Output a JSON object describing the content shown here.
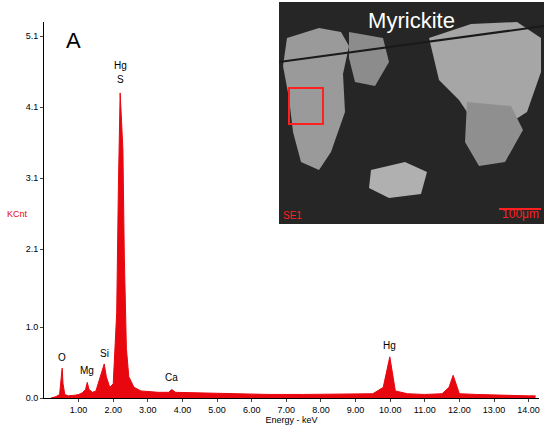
{
  "chart_data": {
    "type": "area",
    "panel_label": "A",
    "x_label": "Energy - keV",
    "y_label": "KCnt",
    "color": "#e8070f",
    "grid": false,
    "x": [
      0.2,
      0.35,
      0.45,
      0.5,
      0.525,
      0.55,
      0.6,
      0.7,
      0.8,
      0.9,
      1.0,
      1.1,
      1.2,
      1.25,
      1.3,
      1.4,
      1.5,
      1.6,
      1.74,
      1.8,
      1.9,
      2.0,
      2.1,
      2.15,
      2.2,
      2.24,
      2.28,
      2.32,
      2.38,
      2.45,
      2.6,
      2.8,
      3.0,
      3.3,
      3.6,
      3.69,
      3.8,
      4.5,
      5.5,
      6.5,
      7.5,
      8.5,
      9.5,
      9.8,
      9.9,
      9.99,
      10.05,
      10.15,
      10.5,
      11.0,
      11.5,
      11.7,
      11.82,
      11.9,
      12.0,
      12.5,
      13.0,
      13.5,
      14.0,
      14.2
    ],
    "values": [
      0.0,
      0.02,
      0.05,
      0.25,
      0.42,
      0.2,
      0.05,
      0.03,
      0.03,
      0.04,
      0.05,
      0.07,
      0.12,
      0.22,
      0.12,
      0.08,
      0.1,
      0.25,
      0.48,
      0.3,
      0.15,
      0.2,
      1.2,
      3.0,
      4.3,
      3.9,
      3.5,
      2.0,
      0.7,
      0.3,
      0.15,
      0.1,
      0.09,
      0.08,
      0.08,
      0.12,
      0.08,
      0.07,
      0.06,
      0.05,
      0.05,
      0.05,
      0.06,
      0.15,
      0.4,
      0.58,
      0.4,
      0.1,
      0.06,
      0.05,
      0.06,
      0.15,
      0.32,
      0.2,
      0.06,
      0.05,
      0.04,
      0.04,
      0.03,
      0.03
    ],
    "xlim": [
      0,
      14.3
    ],
    "ylim": [
      0,
      5.3
    ],
    "xticks": [
      {
        "value": 1,
        "label": "1.00"
      },
      {
        "value": 2,
        "label": "2.00"
      },
      {
        "value": 3,
        "label": "3.00"
      },
      {
        "value": 4,
        "label": "4.00"
      },
      {
        "value": 5,
        "label": "5.00"
      },
      {
        "value": 6,
        "label": "6.00"
      },
      {
        "value": 7,
        "label": "7.00"
      },
      {
        "value": 8,
        "label": "8.00"
      },
      {
        "value": 9,
        "label": "9.00"
      },
      {
        "value": 10,
        "label": "10.00"
      },
      {
        "value": 11,
        "label": "11.00"
      },
      {
        "value": 12,
        "label": "12.00"
      },
      {
        "value": 13,
        "label": "13.00"
      },
      {
        "value": 14,
        "label": "14.00"
      }
    ],
    "yticks": [
      {
        "value": 0,
        "label": "0.0"
      },
      {
        "value": 1.0,
        "label": "1.0"
      },
      2.1,
      3.1,
      4.1,
      5.1
    ],
    "annotations": [
      {
        "text": "Hg",
        "x": 2.2,
        "y": 4.58
      },
      {
        "text": "S",
        "x": 2.2,
        "y": 4.38
      },
      {
        "text": "O",
        "x": 0.525,
        "y": 0.46
      },
      {
        "text": "Mg",
        "x": 1.25,
        "y": 0.28
      },
      {
        "text": "Si",
        "x": 1.74,
        "y": 0.52
      },
      {
        "text": "Ca",
        "x": 3.69,
        "y": 0.18
      },
      {
        "text": "Hg",
        "x": 9.99,
        "y": 0.64
      }
    ],
    "inset": {
      "title": "Myrickite",
      "label": "SE1",
      "scale_bar": "100μm"
    }
  }
}
